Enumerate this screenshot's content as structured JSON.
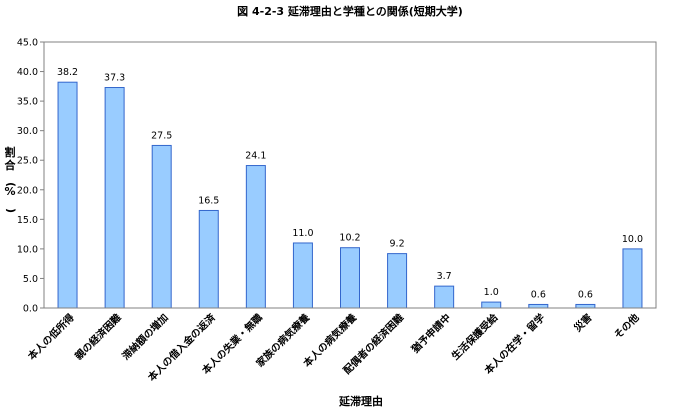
{
  "chart_data": {
    "type": "bar",
    "title": "図 4-2-3 延滞理由と学種との関係(短期大学)",
    "xlabel": "延滞理由",
    "ylabel": "割合(%)",
    "ylim": [
      0,
      45
    ],
    "ytick_step": 5,
    "ytick_labels": [
      "0.0",
      "5.0",
      "10.0",
      "15.0",
      "20.0",
      "25.0",
      "30.0",
      "35.0",
      "40.0",
      "45.0"
    ],
    "grid": false,
    "legend": "none",
    "bar_color": "#99CCFF",
    "bar_edge_color": "#3366CC",
    "categories": [
      "本人の低所得",
      "親の経済困難",
      "滞納額の増加",
      "本人の借入金の返済",
      "本人の失業・無職",
      "家族の病気療養",
      "本人の病気療養",
      "配偶者の経済困難",
      "猶予申請中",
      "生活保護受給",
      "本人の在学・留学",
      "災害",
      "その他"
    ],
    "values": [
      38.2,
      37.3,
      27.5,
      16.5,
      24.1,
      11.0,
      10.2,
      9.2,
      3.7,
      1.0,
      0.6,
      0.6,
      10.0
    ],
    "value_labels": [
      "38.2",
      "37.3",
      "27.5",
      "16.5",
      "24.1",
      "11.0",
      "10.2",
      "9.2",
      "3.7",
      "1.0",
      "0.6",
      "0.6",
      "10.0"
    ]
  }
}
